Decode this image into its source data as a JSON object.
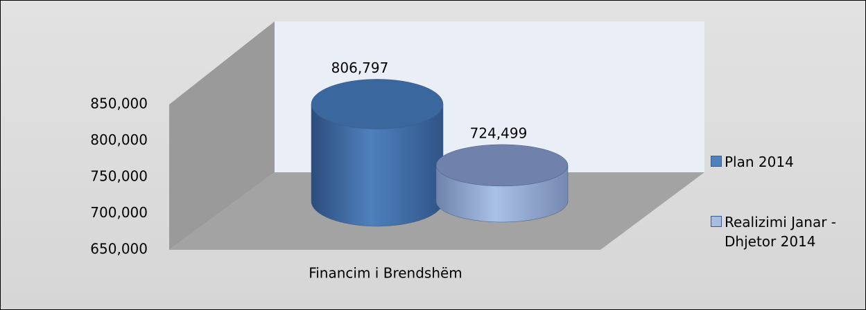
{
  "chart_data": {
    "type": "cylinder",
    "categories": [
      "Financim i Brendshëm"
    ],
    "series": [
      {
        "name": "Plan 2014",
        "color": "#4f81bd",
        "values": [
          806797
        ],
        "value_labels": [
          "806,797"
        ]
      },
      {
        "name": "Realizimi  Janar - Dhjetor 2014",
        "color": "#a7bde0",
        "values": [
          724499
        ],
        "value_labels": [
          "724,499"
        ]
      }
    ],
    "ylim": [
      650000,
      850000
    ],
    "yticks": [
      {
        "value": 650000,
        "label": "650,000"
      },
      {
        "value": 700000,
        "label": "700,000"
      },
      {
        "value": 750000,
        "label": "750,000"
      },
      {
        "value": 800000,
        "label": "800,000"
      },
      {
        "value": 850000,
        "label": "850,000"
      }
    ],
    "legend": "right"
  }
}
